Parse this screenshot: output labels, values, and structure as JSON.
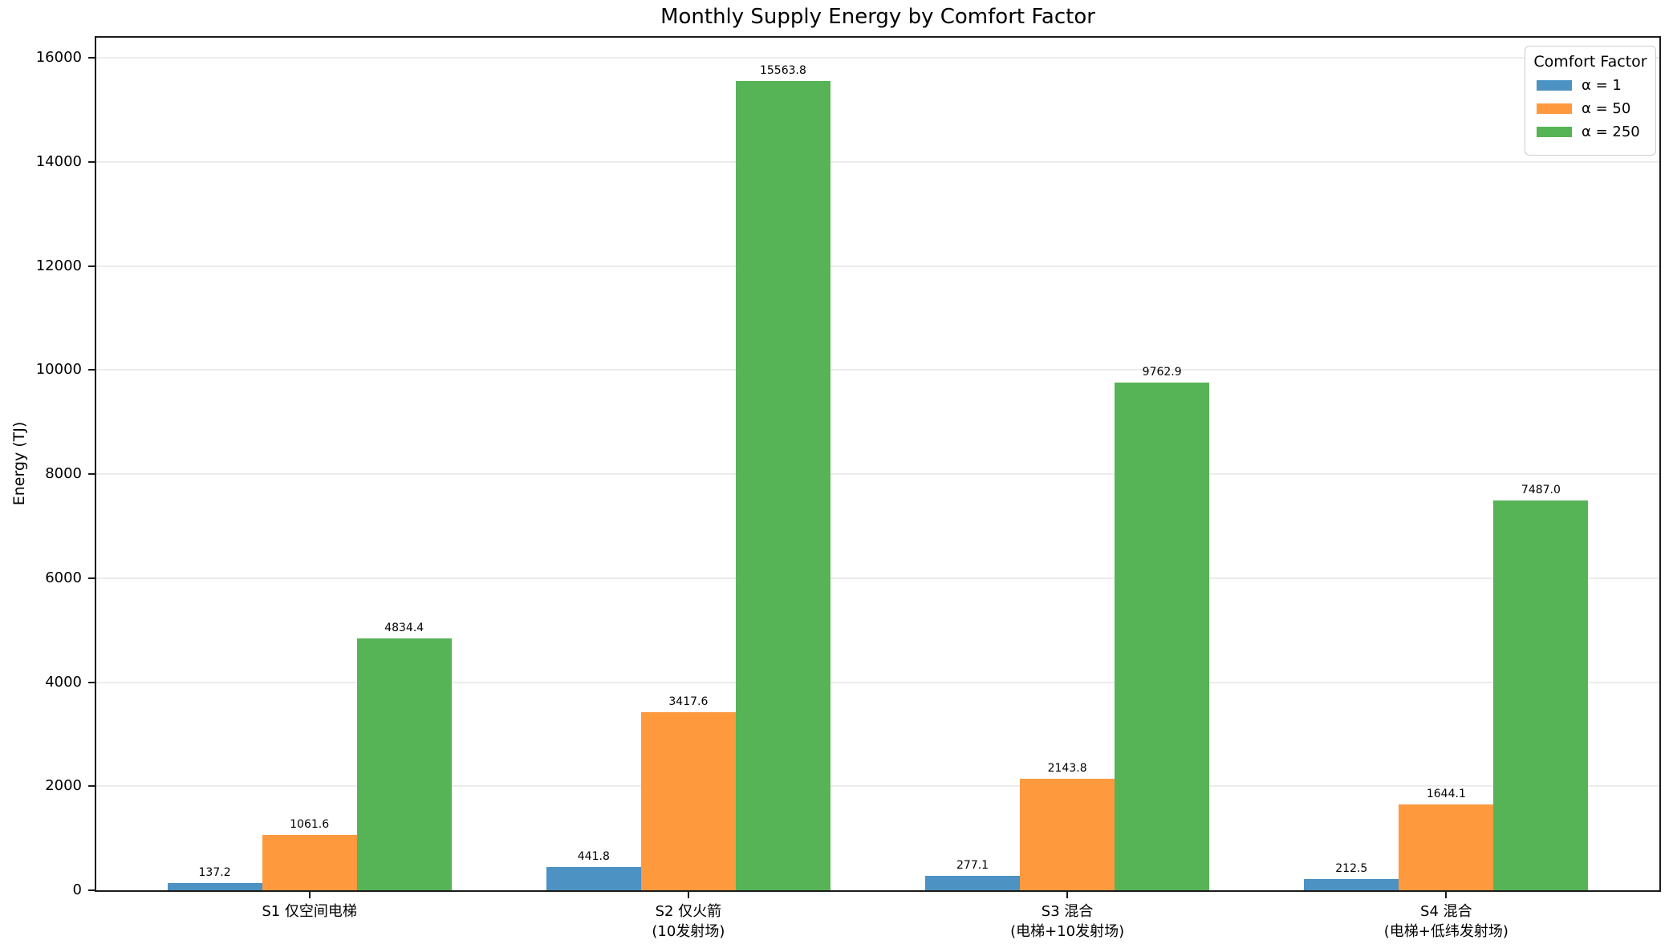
{
  "title": "Monthly Supply Energy by Comfort Factor",
  "chart_data": {
    "type": "bar",
    "title": "Monthly Supply Energy by Comfort Factor",
    "xlabel": "",
    "ylabel": "Energy (TJ)",
    "ylim": [
      0,
      16390
    ],
    "yticks": [
      0,
      2000,
      4000,
      6000,
      8000,
      10000,
      12000,
      14000,
      16000
    ],
    "grid": true,
    "categories": [
      [
        "S1 仅空间电梯"
      ],
      [
        "S2 仅火箭",
        "(10发射场)"
      ],
      [
        "S3 混合",
        "(电梯+10发射场)"
      ],
      [
        "S4 混合",
        "(电梯+低纬发射场)"
      ]
    ],
    "series": [
      {
        "name": "α = 1",
        "color": "#4C92C3",
        "values": [
          137.2,
          441.8,
          277.1,
          212.5
        ]
      },
      {
        "name": "α = 50",
        "color": "#FF993E",
        "values": [
          1061.6,
          3417.6,
          2143.8,
          1644.1
        ]
      },
      {
        "name": "α = 250",
        "color": "#56B356",
        "values": [
          4834.4,
          15563.8,
          9762.9,
          7487.0
        ]
      }
    ],
    "legend": {
      "title": "Comfort Factor",
      "position": "upper right"
    }
  }
}
